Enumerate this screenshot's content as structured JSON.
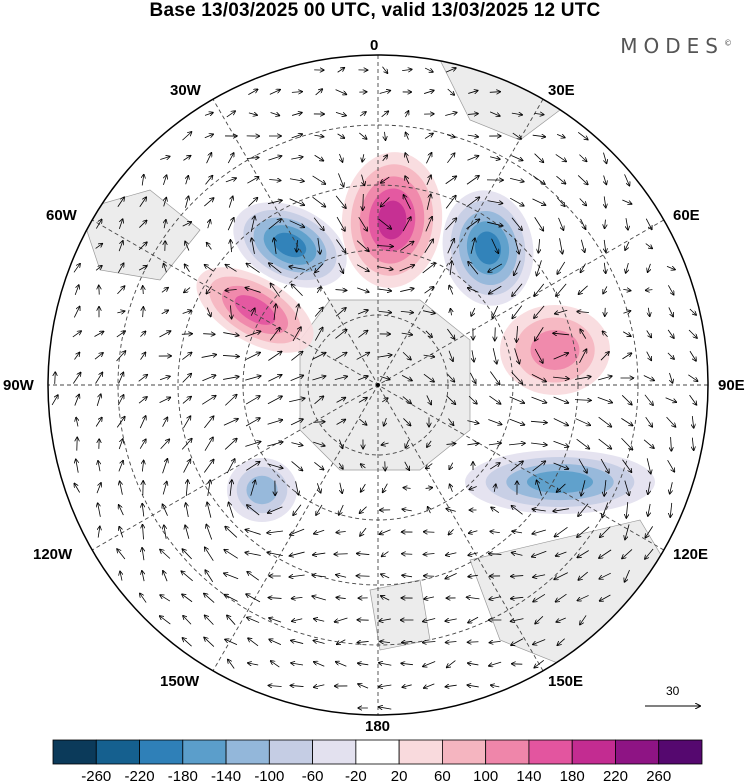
{
  "title": "Base 13/03/2025 00 UTC, valid 13/03/2025 12 UTC",
  "brand": "MODES",
  "brand_mark": "©",
  "longitude_labels": {
    "lon_0": "0",
    "lon_30e": "30E",
    "lon_60e": "60E",
    "lon_90e": "90E",
    "lon_120e": "120E",
    "lon_150e": "150E",
    "lon_180": "180",
    "lon_150w": "150W",
    "lon_120w": "120W",
    "lon_90w": "90W",
    "lon_60w": "60W",
    "lon_30w": "30W"
  },
  "reference_vector": {
    "value": "30"
  },
  "colorbar": {
    "colors": [
      "#0b3a5a",
      "#15608f",
      "#2f80b8",
      "#5b9ecb",
      "#93b7da",
      "#c5cde4",
      "#e3e1ef",
      "#ffffff",
      "#f9dadd",
      "#f5b5c0",
      "#ef86aa",
      "#e3559f",
      "#c32c91",
      "#8e1484",
      "#55086f"
    ],
    "labels": [
      "-260",
      "-220",
      "-180",
      "-140",
      "-100",
      "-60",
      "-20",
      "20",
      "60",
      "100",
      "140",
      "180",
      "220",
      "260"
    ]
  },
  "field_anomalies": [
    {
      "kind": "negative",
      "level": 5,
      "center": "south-west of 0 meridian, 45S"
    },
    {
      "kind": "positive",
      "level": 5,
      "center": "near 0 meridian"
    },
    {
      "kind": "negative",
      "level": 5,
      "center": "near 30E"
    },
    {
      "kind": "positive",
      "level": 4,
      "center": "near 60W"
    },
    {
      "kind": "positive",
      "level": 3,
      "center": "near 80E"
    },
    {
      "kind": "negative",
      "level": 4,
      "center": "near 110E"
    },
    {
      "kind": "negative",
      "level": 3,
      "center": "near 120W"
    }
  ]
}
